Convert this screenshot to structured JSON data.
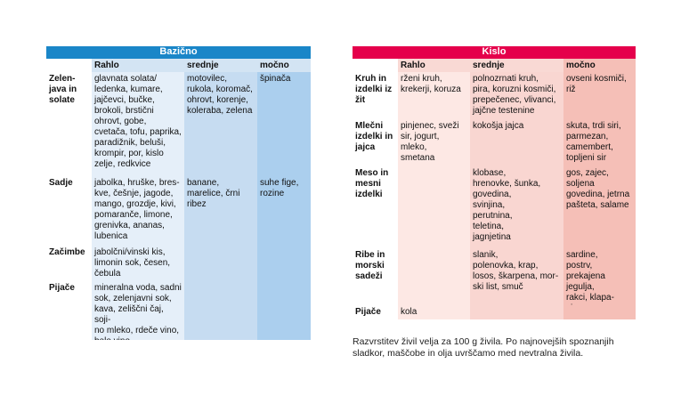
{
  "bazicno": {
    "title": "Bazično",
    "colors": {
      "title_bg": "#1a86c8",
      "header_bg": "#d3e4f3",
      "rahlo_bg": "#e5eff9",
      "srednje_bg": "#c6dcf1",
      "mocno_bg": "#abcfee",
      "label_bg": "#ffffff"
    },
    "headers": [
      "Rahlo",
      "srednje",
      "močno"
    ],
    "rows": [
      {
        "label": "Zelen-\njava in\nsolate",
        "rahlo": "glavnata solata/\nledenka, kumare,\njajčevci, bučke,\nbrokoli, brstični\nohrovt, gobe,\ncvetača, tofu, paprika,\nparadižnik, beluši,\nkrompir, por, kislo\nzelje, redkvice",
        "srednje": "motovilec,\nrukola, koromač,\nohrovt, korenje,\nkoleraba, zelena",
        "mocno": "špinača"
      },
      {
        "label": "Sadje",
        "rahlo": "jabolka, hruške, bres-\nkve, češnje, jagode,\nmango, grozdje, kivi,\npomaranče, limone,\ngrenivka, ananas,\nlubenica",
        "srednje": "banane,\nmarelice, črni\nribez",
        "mocno": "suhe fige,\nrozine"
      },
      {
        "label": "Začimbe",
        "rahlo": "jabolčni/vinski kis,\nlimonin sok, česen,\nčebula",
        "srednje": "",
        "mocno": ""
      },
      {
        "label": "Pijače",
        "rahlo": "mineralna voda, sadni\nsok, zelenjavni sok,\nkava, zeliščni čaj, soji-\nno mleko, rdeče vino,\nbelo vino",
        "srednje": "",
        "mocno": ""
      }
    ]
  },
  "kislo": {
    "title": "Kislo",
    "colors": {
      "title_bg": "#e5004b",
      "header_bg": "#f9d9d4",
      "rahlo_bg": "#fde8e4",
      "srednje_bg": "#f9d6d1",
      "mocno_bg": "#f5bfb7",
      "label_bg": "#ffffff"
    },
    "headers": [
      "Rahlo",
      "srednje",
      "močno"
    ],
    "rows": [
      {
        "label": "Kruh in\nizdelki iz\nžit",
        "rahlo": "rženi kruh,\nkrekerji, koruza",
        "srednje": "polnozrnati kruh,\npira, koruzni kosmiči,\nprepečenec, vlivanci,\njajčne testenine",
        "mocno": "ovseni kosmiči,\nriž"
      },
      {
        "label": "Mlečni\nizdelki in\njajca",
        "rahlo": "pinjenec, sveži\nsir, jogurt, mleko,\nsmetana",
        "srednje": "kokošja jajca",
        "mocno": "skuta, trdi siri,\nparmezan,\ncamembert,\ntopljeni sir"
      },
      {
        "label": "Meso in\nmesni\nizdelki",
        "rahlo": "",
        "srednje": "klobase,\nhrenovke, šunka,\ngovedina,\nsvinjina,\nperutnina,\nteletina,\njagnjetina",
        "mocno": "gos, zajec,\nsoljena\ngovedina, jetrna\npašteta, salame"
      },
      {
        "label": "Ribe in\nmorski\nsadeži",
        "rahlo": "",
        "srednje": "slanik,\npolenovka, krap,\nlosos, škarpena, mor-\nski list, smuč",
        "mocno": "sardine,\npostrv,\nprekajena jegulja,\nrakci, klapa-\nvice"
      },
      {
        "label": "Pijače",
        "rahlo": "kola",
        "srednje": "",
        "mocno": ""
      }
    ]
  },
  "note": "Razvrstitev živil velja za 100 g živila. Po najnovejših spoznanjih\nsladkor, maščobe in olja uvrščamo med nevtralna živila."
}
